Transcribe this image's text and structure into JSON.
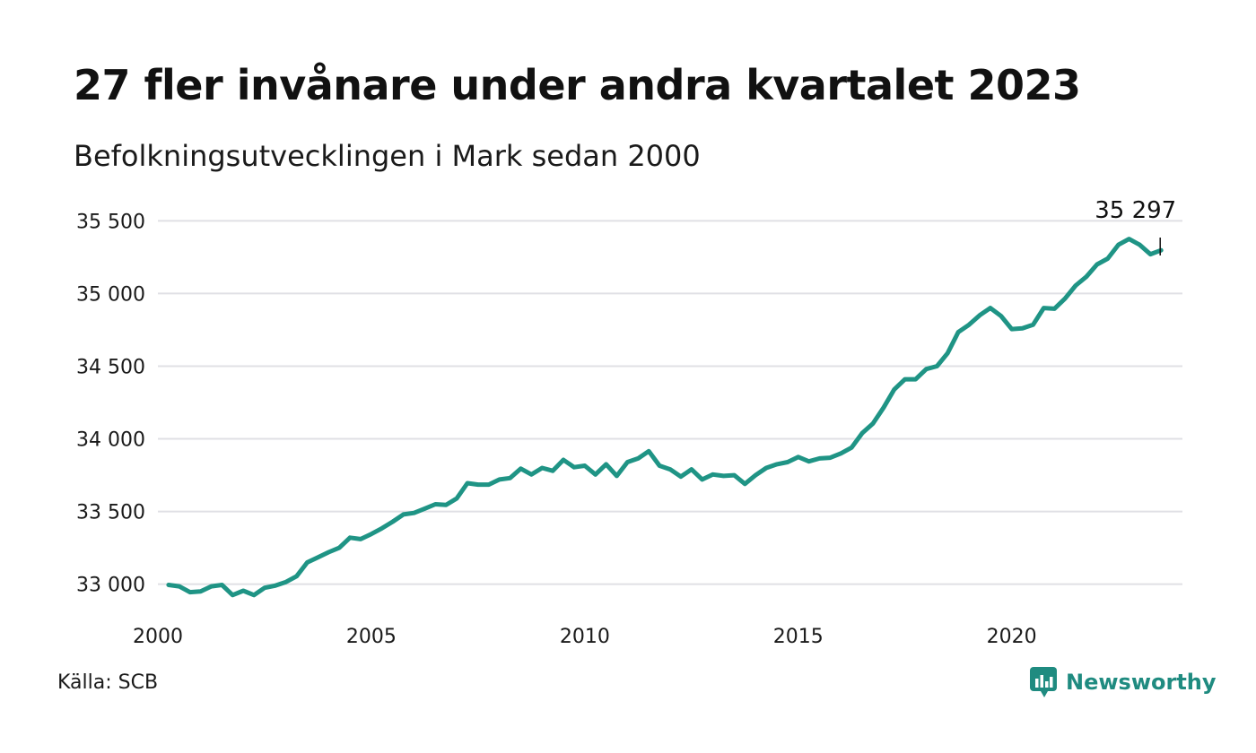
{
  "title": "27 fler invånare under andra kvartalet 2023",
  "subtitle": "Befolkningsutvecklingen i Mark sedan 2000",
  "source": "Källa: SCB",
  "brand": {
    "name": "Newsworthy",
    "icon": "newsworthy-logo-icon"
  },
  "colors": {
    "line": "#1f9485",
    "grid": "#e0e0e5",
    "brand": "#1f8b80",
    "text": "#111111"
  },
  "chart_data": {
    "type": "line",
    "title": "27 fler invånare under andra kvartalet 2023",
    "subtitle": "Befolkningsutvecklingen i Mark sedan 2000",
    "xlabel": "",
    "ylabel": "",
    "xlim": [
      2000,
      2024
    ],
    "ylim": [
      32850,
      35650
    ],
    "x_ticks": [
      2000,
      2005,
      2010,
      2015,
      2020
    ],
    "x_tick_labels": [
      "2000",
      "2005",
      "2010",
      "2015",
      "2020"
    ],
    "y_ticks": [
      33000,
      33500,
      34000,
      34500,
      35000,
      35500
    ],
    "y_tick_labels": [
      "33 000",
      "33 500",
      "34 000",
      "34 500",
      "35 000",
      "35 500"
    ],
    "grid": true,
    "annotation": {
      "label": "35 297",
      "x": 2023.5,
      "y": 35297
    },
    "series": [
      {
        "x": [
          2000.25,
          2000.5,
          2000.75,
          2001,
          2001.25,
          2001.5,
          2001.75,
          2002,
          2002.25,
          2002.5,
          2002.75,
          2003,
          2003.25,
          2003.5,
          2003.75,
          2004,
          2004.25,
          2004.5,
          2004.75,
          2005,
          2005.25,
          2005.5,
          2005.75,
          2006,
          2006.25,
          2006.5,
          2006.75,
          2007,
          2007.25,
          2007.5,
          2007.75,
          2008,
          2008.25,
          2008.5,
          2008.75,
          2009,
          2009.25,
          2009.5,
          2009.75,
          2010,
          2010.25,
          2010.5,
          2010.75,
          2011,
          2011.25,
          2011.5,
          2011.75,
          2012,
          2012.25,
          2012.5,
          2012.75,
          2013,
          2013.25,
          2013.5,
          2013.75,
          2014,
          2014.25,
          2014.5,
          2014.75,
          2015,
          2015.25,
          2015.5,
          2015.75,
          2016,
          2016.25,
          2016.5,
          2016.75,
          2017,
          2017.25,
          2017.5,
          2017.75,
          2018,
          2018.25,
          2018.5,
          2018.75,
          2019,
          2019.25,
          2019.5,
          2019.75,
          2020,
          2020.25,
          2020.5,
          2020.75,
          2021,
          2021.25,
          2021.5,
          2021.75,
          2022,
          2022.25,
          2022.5,
          2022.75,
          2023,
          2023.25,
          2023.5
        ],
        "values": [
          32995,
          32985,
          32945,
          32950,
          32985,
          32995,
          32925,
          32955,
          32925,
          32975,
          32990,
          33015,
          33055,
          33150,
          33185,
          33220,
          33250,
          33320,
          33310,
          33345,
          33385,
          33430,
          33480,
          33490,
          33520,
          33550,
          33545,
          33590,
          33695,
          33685,
          33685,
          33720,
          33730,
          33795,
          33755,
          33800,
          33780,
          33855,
          33805,
          33815,
          33755,
          33825,
          33745,
          33840,
          33865,
          33915,
          33815,
          33790,
          33740,
          33790,
          33720,
          33755,
          33745,
          33750,
          33690,
          33750,
          33800,
          33825,
          33840,
          33875,
          33845,
          33865,
          33870,
          33900,
          33940,
          34040,
          34105,
          34215,
          34340,
          34410,
          34410,
          34480,
          34500,
          34590,
          34735,
          34785,
          34850,
          34900,
          34845,
          34755,
          34760,
          34785,
          34900,
          34895,
          34965,
          35055,
          35115,
          35200,
          35240,
          35335,
          35375,
          35335,
          35270,
          35297
        ]
      }
    ]
  }
}
